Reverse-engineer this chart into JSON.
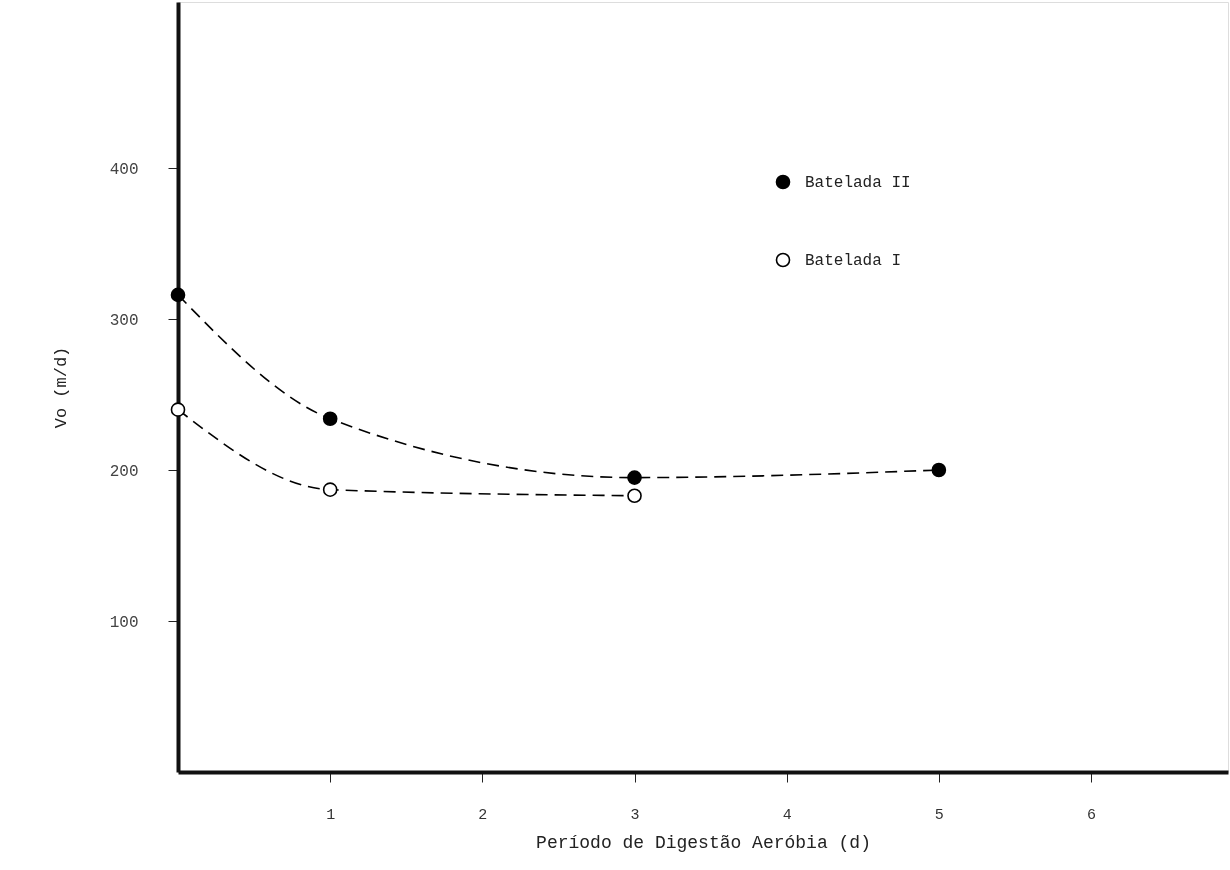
{
  "chart_data": {
    "type": "line",
    "xlabel": "Período de Digestão Aeróbia (d)",
    "ylabel": "Vo (m/d)",
    "xlim": [
      0,
      6.9
    ],
    "xticks": [
      1,
      2,
      3,
      4,
      5,
      6
    ],
    "ylim": [
      0,
      510
    ],
    "yticks": [
      100,
      200,
      300,
      400
    ],
    "series": [
      {
        "name": "Batelada II",
        "color": "#000000",
        "x": [
          0,
          1,
          3,
          5
        ],
        "values": [
          316,
          234,
          195,
          200
        ]
      },
      {
        "name": "Batelada I",
        "color": "#000000",
        "x": [
          0,
          1,
          3
        ],
        "values": [
          240,
          187,
          183
        ]
      }
    ],
    "marker": "circle",
    "line_style": "dashed",
    "grid": false,
    "legend": "top"
  }
}
